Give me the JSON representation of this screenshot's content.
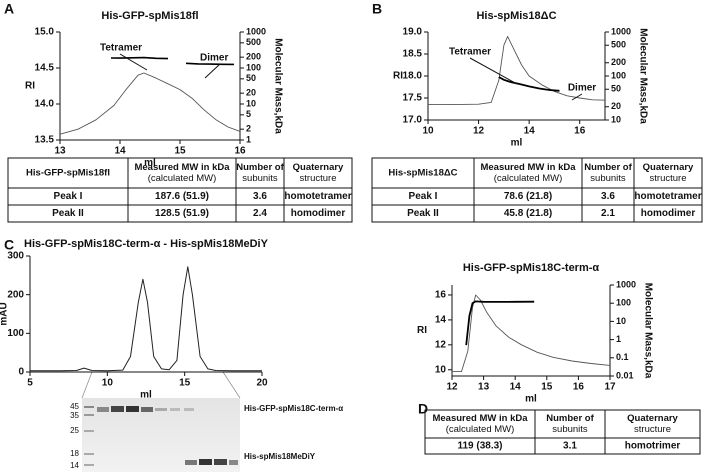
{
  "panel_labels": [
    "A",
    "B",
    "C",
    "D"
  ],
  "chart_data": [
    {
      "type": "line",
      "title": "His-GFP-spMis18fl",
      "x_label": "ml",
      "y_label": "RI",
      "y2_label": "Molecular Mass,kDa",
      "xlim": [
        13,
        16
      ],
      "xticks": [
        13,
        14,
        15,
        16
      ],
      "ylim": [
        13.5,
        15
      ],
      "yticks": [
        13.5,
        {
          "value": 14,
          "label": "14.0"
        },
        14.5,
        {
          "value": 15,
          "label": "15.0"
        }
      ],
      "y2lim": [
        1,
        1000
      ],
      "y2ticks": [
        1,
        2,
        5,
        10,
        20,
        50,
        100,
        200,
        500,
        1000
      ],
      "y2log": true,
      "annotations": [
        "Tetramer",
        "Dimer"
      ],
      "series": [
        {
          "color": "#555555",
          "width": 0.9,
          "x": [
            13.0,
            13.3,
            13.6,
            13.9,
            14.1,
            14.3,
            14.4,
            14.6,
            14.8,
            15.0,
            15.2,
            15.4,
            15.6,
            15.8,
            16.0
          ],
          "values": [
            13.58,
            13.65,
            13.78,
            13.98,
            14.2,
            14.4,
            14.43,
            14.36,
            14.28,
            14.2,
            14.08,
            13.92,
            13.78,
            13.68,
            13.62
          ]
        },
        {
          "color": "#000000",
          "width": 1.6,
          "axis": "y2",
          "x": [
            13.85,
            14.0,
            14.2,
            14.4,
            14.6,
            14.8
          ],
          "values": [
            190,
            188,
            192,
            195,
            186,
            182
          ]
        },
        {
          "color": "#000000",
          "width": 1.6,
          "axis": "y2",
          "x": [
            15.1,
            15.3,
            15.5,
            15.7,
            15.9
          ],
          "values": [
            135,
            130,
            128,
            127,
            126
          ]
        }
      ]
    },
    {
      "type": "line",
      "title": "His-spMis18ΔC",
      "x_label": "ml",
      "y_label": "RI",
      "y2_label": "Molecular Mass,kDa",
      "xlim": [
        10,
        17
      ],
      "xticks": [
        10,
        12,
        14,
        16
      ],
      "ylim": [
        17,
        19
      ],
      "yticks": [
        {
          "value": 17,
          "label": "17.0"
        },
        17.5,
        {
          "value": 18,
          "label": "18.0"
        },
        18.5,
        {
          "value": 19,
          "label": "19.0"
        }
      ],
      "y2lim": [
        10,
        1000
      ],
      "y2ticks": [
        10,
        20,
        50,
        100,
        200,
        500,
        1000
      ],
      "y2log": true,
      "annotations": [
        "Tetramer",
        "Dimer"
      ],
      "series": [
        {
          "color": "#555555",
          "width": 0.9,
          "x": [
            10,
            11,
            12,
            12.5,
            12.8,
            13.0,
            13.15,
            13.4,
            13.7,
            14.0,
            14.5,
            15,
            15.5,
            16,
            16.5,
            17
          ],
          "values": [
            17.35,
            17.35,
            17.36,
            17.4,
            17.9,
            18.7,
            18.9,
            18.6,
            18.25,
            18.0,
            17.8,
            17.65,
            17.55,
            17.5,
            17.46,
            17.45
          ]
        },
        {
          "color": "#000000",
          "width": 1.8,
          "axis": "y2",
          "x": [
            12.8,
            13.0,
            13.3,
            13.6,
            14.0,
            14.4,
            14.8,
            15.2
          ],
          "values": [
            95,
            82,
            72,
            66,
            58,
            52,
            48,
            46
          ]
        }
      ]
    },
    {
      "type": "line",
      "title": "His-GFP-spMis18C-term-α - His-spMis18MeDiY",
      "x_label": "ml",
      "y_label": "mAU",
      "xlim": [
        5,
        20
      ],
      "xticks": [
        5,
        10,
        15,
        20
      ],
      "ylim": [
        0,
        300
      ],
      "yticks": [
        0,
        100,
        200,
        300
      ],
      "series": [
        {
          "color": "#222222",
          "width": 1,
          "x": [
            5,
            6,
            7,
            8,
            8.5,
            9,
            10,
            11,
            11.5,
            12,
            12.3,
            12.6,
            13,
            13.5,
            14,
            14.5,
            14.9,
            15.2,
            15.5,
            16,
            16.5,
            17,
            18,
            19,
            20
          ],
          "values": [
            3,
            3,
            3,
            4,
            10,
            4,
            3,
            5,
            40,
            180,
            240,
            180,
            40,
            8,
            6,
            30,
            200,
            272,
            200,
            40,
            8,
            4,
            3,
            3,
            3
          ]
        }
      ]
    },
    {
      "type": "line",
      "title": "His-GFP-spMis18C-term-α",
      "x_label": "ml",
      "y_label": "RI",
      "y2_label": "Molecular Mass,kDa",
      "xlim": [
        12,
        17
      ],
      "xticks": [
        12,
        13,
        14,
        15,
        16,
        17
      ],
      "ylim": [
        9.5,
        16.8
      ],
      "yticks": [
        10,
        12,
        14,
        16
      ],
      "y2lim": [
        0.01,
        1000
      ],
      "y2ticks": [
        0.01,
        0.1,
        1,
        10,
        100,
        1000
      ],
      "y2log": true,
      "series": [
        {
          "color": "#555555",
          "width": 0.9,
          "x": [
            12.0,
            12.3,
            12.5,
            12.65,
            12.75,
            12.9,
            13.1,
            13.4,
            13.8,
            14.2,
            14.7,
            15.2,
            15.8,
            16.4,
            17.0
          ],
          "values": [
            9.85,
            9.85,
            11.5,
            15.0,
            16.0,
            15.6,
            14.6,
            13.5,
            12.6,
            12.0,
            11.4,
            11.0,
            10.7,
            10.5,
            10.35
          ]
        },
        {
          "color": "#000000",
          "width": 1.8,
          "axis": "y2",
          "x": [
            12.45,
            12.55,
            12.65,
            12.75,
            13.0,
            13.5,
            14.0,
            14.6
          ],
          "values": [
            0.5,
            20,
            100,
            125,
            120,
            118,
            119,
            121
          ]
        }
      ]
    }
  ],
  "tables": [
    {
      "header": [
        [
          "His-GFP-spMis18fl"
        ],
        [
          "Measured MW in kDa",
          "(calculated MW)"
        ],
        [
          "Number of",
          "subunits"
        ],
        [
          "Quaternary",
          "structure"
        ]
      ],
      "rows": [
        [
          "Peak I",
          "187.6 (51.9)",
          "3.6",
          "homotetramer"
        ],
        [
          "Peak II",
          "128.5 (51.9)",
          "2.4",
          "homodimer"
        ]
      ]
    },
    {
      "header": [
        [
          "His-spMis18ΔC"
        ],
        [
          "Measured MW in kDa",
          "(calculated MW)"
        ],
        [
          "Number of",
          "subunits"
        ],
        [
          "Quaternary",
          "structure"
        ]
      ],
      "rows": [
        [
          "Peak I",
          "78.6 (21.8)",
          "3.6",
          "homotetramer"
        ],
        [
          "Peak II",
          "45.8 (21.8)",
          "2.1",
          "homodimer"
        ]
      ]
    },
    {
      "header": [
        [
          "Measured MW in kDa",
          "(calculated MW)"
        ],
        [
          "Number of",
          "subunits"
        ],
        [
          "Quaternary",
          "structure"
        ]
      ],
      "rows": [
        [
          "119 (38.3)",
          "3.1",
          "homotrimer"
        ]
      ]
    }
  ],
  "gel": {
    "markers": [
      "45",
      "35",
      "25",
      "18",
      "14"
    ],
    "bands": [
      "His-GFP-spMis18C-term-α",
      "His-spMis18MeDiY"
    ]
  }
}
